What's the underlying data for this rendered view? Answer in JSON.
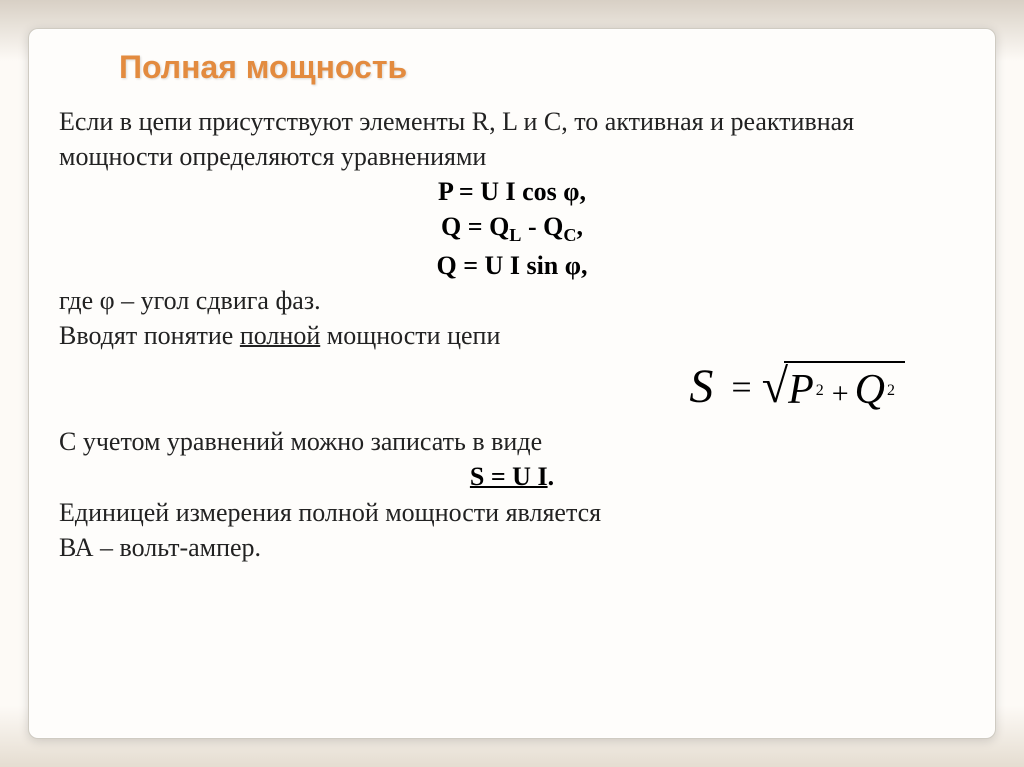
{
  "slide": {
    "title": "Полная мощность",
    "para1": "Если в цепи присутствуют элементы R, L и C, то активная и реактивная мощности определяются уравнениями",
    "eq1": "P = U I cos φ,",
    "eq2_left": "Q = Q",
    "eq2_sub1": "L",
    "eq2_mid": " - Q",
    "eq2_sub2": "C",
    "eq2_end": ",",
    "eq3": "Q = U I sin φ,",
    "para2a": "где φ – угол сдвига фаз.",
    "para2b_pre": "Вводят понятие ",
    "para2b_u": "полной",
    "para2b_post": " мощности цепи",
    "sqrt": {
      "S": "S",
      "eq": "=",
      "P": "P",
      "Q": "Q",
      "exp": "2",
      "plus": "+"
    },
    "para3": "С учетом уравнений можно записать в виде",
    "eq4": "S = U I",
    "eq4_dot": ".",
    "para4a": "Единицей измерения полной мощности является",
    "para4b": "ВА – вольт-ампер."
  },
  "colors": {
    "title": "#e38b3f",
    "text": "#222222",
    "background": "#fefdfb"
  }
}
